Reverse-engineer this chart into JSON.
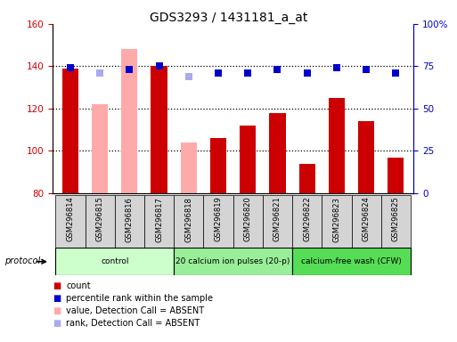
{
  "title": "GDS3293 / 1431181_a_at",
  "samples": [
    "GSM296814",
    "GSM296815",
    "GSM296816",
    "GSM296817",
    "GSM296818",
    "GSM296819",
    "GSM296820",
    "GSM296821",
    "GSM296822",
    "GSM296823",
    "GSM296824",
    "GSM296825"
  ],
  "bar_values": [
    139,
    122,
    148,
    140,
    104,
    106,
    112,
    118,
    94,
    125,
    114,
    97
  ],
  "bar_absent": [
    false,
    true,
    true,
    false,
    true,
    false,
    false,
    false,
    false,
    false,
    false,
    false
  ],
  "percentile_values": [
    74,
    71,
    73,
    75,
    69,
    71,
    71,
    73,
    71,
    74,
    73,
    71
  ],
  "percentile_absent": [
    false,
    true,
    false,
    false,
    true,
    false,
    false,
    false,
    false,
    false,
    false,
    false
  ],
  "ylim_left": [
    80,
    160
  ],
  "ylim_right": [
    0,
    100
  ],
  "yticks_left": [
    80,
    100,
    120,
    140,
    160
  ],
  "yticks_right": [
    0,
    25,
    50,
    75,
    100
  ],
  "ytick_labels_right": [
    "0",
    "25",
    "50",
    "75",
    "100%"
  ],
  "protocol_groups": [
    {
      "label": "control",
      "indices": [
        0,
        1,
        2,
        3
      ],
      "color": "#ccffcc"
    },
    {
      "label": "20 calcium ion pulses (20-p)",
      "indices": [
        4,
        5,
        6,
        7
      ],
      "color": "#99ee99"
    },
    {
      "label": "calcium-free wash (CFW)",
      "indices": [
        8,
        9,
        10,
        11
      ],
      "color": "#55dd55"
    }
  ],
  "bar_color_present": "#cc0000",
  "bar_color_absent": "#ffaaaa",
  "dot_color_present": "#0000cc",
  "dot_color_absent": "#aaaaee",
  "left_tick_color": "#cc0000",
  "right_tick_color": "#0000cc",
  "dotted_lines": [
    100,
    120,
    140
  ],
  "bar_width": 0.55,
  "dot_size": 28,
  "legend_items": [
    {
      "color": "#cc0000",
      "label": "count"
    },
    {
      "color": "#0000cc",
      "label": "percentile rank within the sample"
    },
    {
      "color": "#ffaaaa",
      "label": "value, Detection Call = ABSENT"
    },
    {
      "color": "#aaaaee",
      "label": "rank, Detection Call = ABSENT"
    }
  ]
}
